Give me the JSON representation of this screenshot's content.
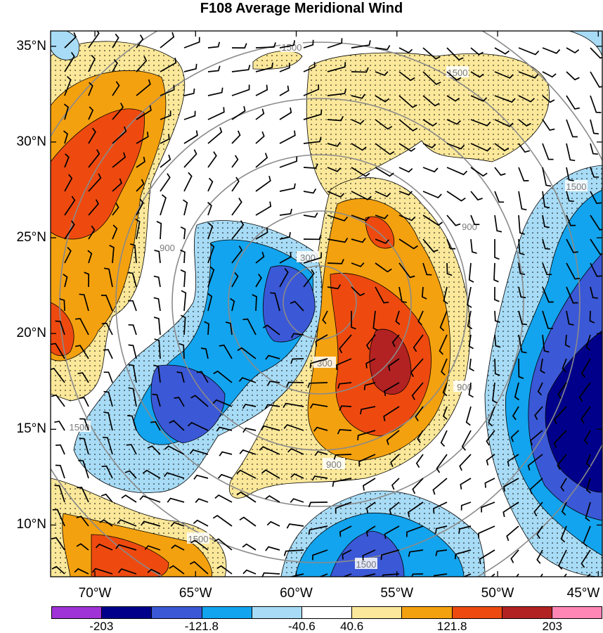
{
  "title": "F108 Average Meridional Wind",
  "lat_labels": [
    {
      "text": "35°N",
      "lat": 35
    },
    {
      "text": "30°N",
      "lat": 30
    },
    {
      "text": "25°N",
      "lat": 25
    },
    {
      "text": "20°N",
      "lat": 20
    },
    {
      "text": "15°N",
      "lat": 15
    },
    {
      "text": "10°N",
      "lat": 10
    }
  ],
  "lon_labels": [
    {
      "text": "70°W",
      "lon": -70
    },
    {
      "text": "65°W",
      "lon": -65
    },
    {
      "text": "60°W",
      "lon": -60
    },
    {
      "text": "55°W",
      "lon": -55
    },
    {
      "text": "50°W",
      "lon": -50
    },
    {
      "text": "45°W",
      "lon": -45
    }
  ],
  "domain": {
    "lon_min": -72.2,
    "lon_max": -44.8,
    "lat_min": 7.3,
    "lat_max": 35.8
  },
  "range_ring_labels": [
    "300",
    "900",
    "1500"
  ],
  "colorbar": {
    "colors": [
      "#a033d8",
      "#00008b",
      "#3b58d6",
      "#12a4ee",
      "#a8dcf6",
      "#ffffff",
      "#fbe89a",
      "#f4a10f",
      "#ee4a10",
      "#b22222",
      "#ff86b5"
    ],
    "labels": [
      {
        "text": "-203",
        "boundary": 1
      },
      {
        "text": "-121.8",
        "boundary": 3
      },
      {
        "text": "-40.6",
        "boundary": 5
      },
      {
        "text": "40.6",
        "boundary": 6
      },
      {
        "text": "121.8",
        "boundary": 8
      },
      {
        "text": "203",
        "boundary": 10
      }
    ]
  },
  "field_colors": {
    "pos_light": "#fbe89a",
    "pos_mid": "#f4a10f",
    "pos_high": "#ee4a10",
    "pos_max": "#b22222",
    "neg_light": "#a8dcf6",
    "neg_mid": "#12a4ee",
    "neg_high": "#3b58d6",
    "neg_max": "#00008b"
  }
}
